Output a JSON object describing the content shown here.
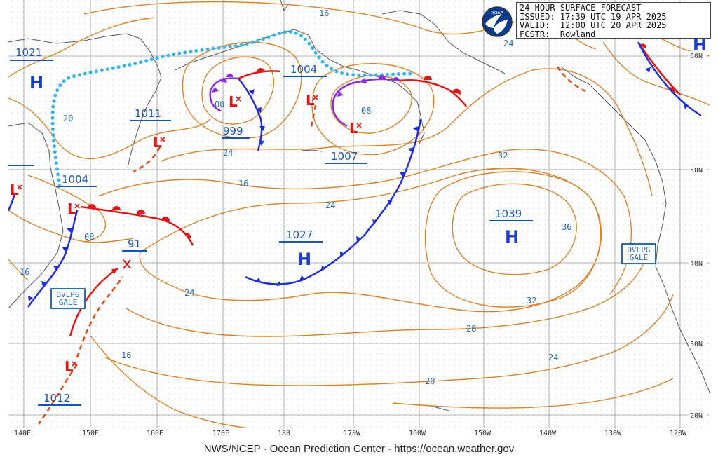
{
  "header": {
    "title": "24-HOUR SURFACE FORECAST",
    "issued": "ISSUED: 17:39 UTC 19 APR 2025",
    "valid": "VALID:  12:00 UTC 20 APR 2025",
    "forecaster": "FCSTR:  Rowland"
  },
  "logo_text": "NOAA",
  "footer": "NWS/NCEP - Ocean Prediction Center - https://ocean.weather.gov",
  "longitude_labels": [
    "140E",
    "150E",
    "160E",
    "170E",
    "180",
    "170W",
    "160W",
    "150W",
    "140W",
    "130W",
    "120W"
  ],
  "latitude_labels": [
    "60N",
    "50N",
    "40N",
    "30N",
    "20N"
  ],
  "pressure_centers": [
    {
      "type": "H",
      "value": "1021"
    },
    {
      "type": "L",
      "value": "1011"
    },
    {
      "type": "L",
      "value": "1004"
    },
    {
      "type": "L",
      "value": "999"
    },
    {
      "type": "L",
      "value": "1004"
    },
    {
      "type": "L",
      "value": "1007"
    },
    {
      "type": "H",
      "value": "1027"
    },
    {
      "type": "H",
      "value": "1039"
    },
    {
      "type": "L",
      "value": "91"
    },
    {
      "type": "L",
      "value": "1012"
    },
    {
      "type": "H",
      "value": ""
    },
    {
      "type": "L",
      "value": ""
    }
  ],
  "isobar_labels": [
    "16",
    "20",
    "24",
    "24",
    "16",
    "24",
    "08",
    "08",
    "00",
    "32",
    "36",
    "32",
    "28",
    "24",
    "20",
    "16",
    "24",
    "16"
  ],
  "warnings": [
    {
      "line1": "DVLPG",
      "line2": "GALE"
    },
    {
      "line1": "DVLPG",
      "line2": "GALE"
    }
  ],
  "colors": {
    "isobar": "#d9822b",
    "isobar_label": "#2a6cb0",
    "center_blue": "#1a3ccf",
    "low_red": "#e01818",
    "cold_front": "#1f2fd6",
    "warm_front": "#e01818",
    "occluded_front": "#8a2be2",
    "trough": "#36b5e8",
    "land": "#444444",
    "grid": "#888888"
  }
}
